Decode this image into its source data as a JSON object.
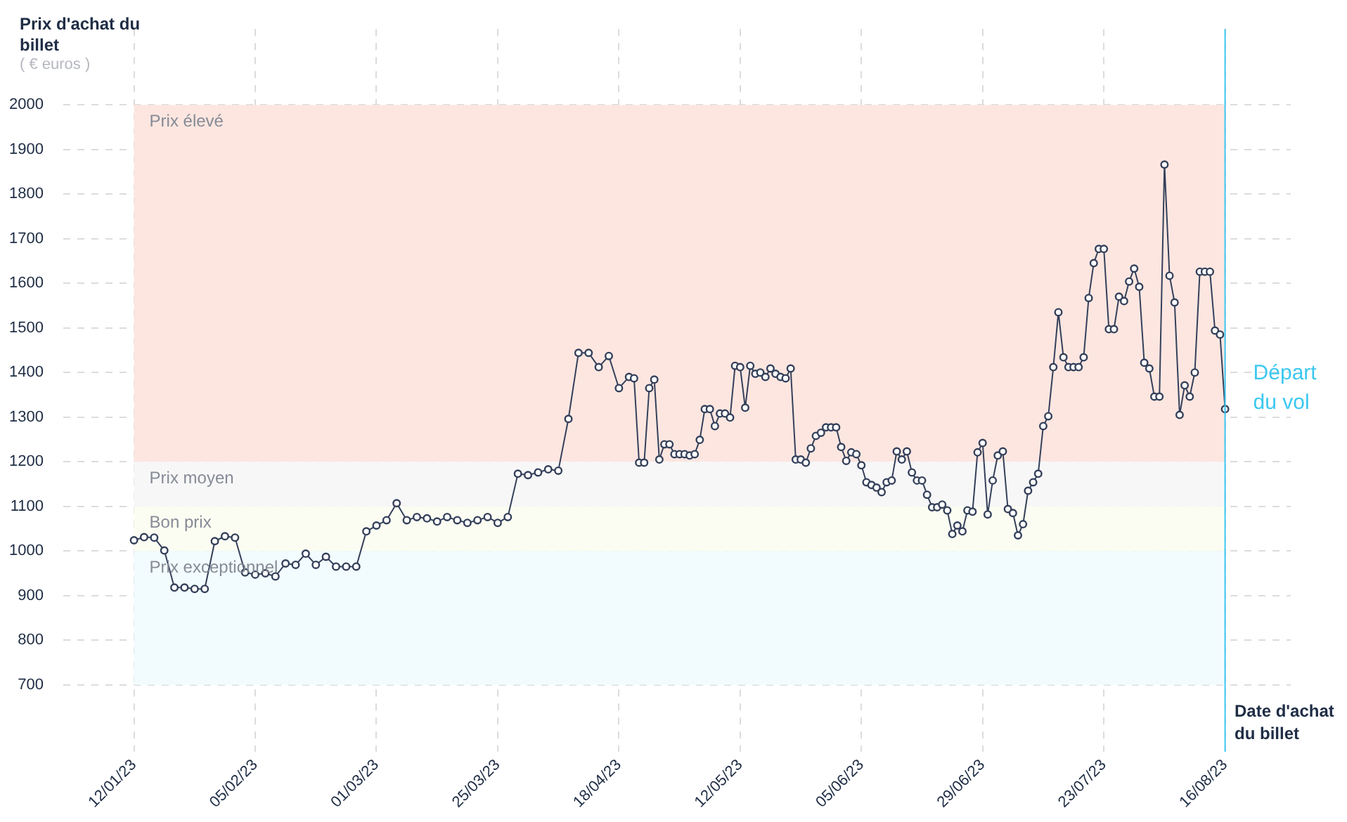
{
  "chart_data": {
    "type": "line",
    "ylabel": "Prix d'achat du billet",
    "xlabel": "Date d'achat du billet",
    "annotations": [
      "( € euros )"
    ],
    "x": [
      "2023-01-12",
      "2023-01-14",
      "2023-01-16",
      "2023-01-18",
      "2023-01-20",
      "2023-01-22",
      "2023-01-24",
      "2023-01-26",
      "2023-01-28",
      "2023-01-30",
      "2023-02-01",
      "2023-02-03",
      "2023-02-05",
      "2023-02-07",
      "2023-02-09",
      "2023-02-11",
      "2023-02-13",
      "2023-02-15",
      "2023-02-17",
      "2023-02-19",
      "2023-02-21",
      "2023-02-23",
      "2023-02-25",
      "2023-02-27",
      "2023-03-01",
      "2023-03-03",
      "2023-03-05",
      "2023-03-07",
      "2023-03-09",
      "2023-03-11",
      "2023-03-13",
      "2023-03-15",
      "2023-03-17",
      "2023-03-19",
      "2023-03-21",
      "2023-03-23",
      "2023-03-25",
      "2023-03-27",
      "2023-03-29",
      "2023-03-31",
      "2023-04-02",
      "2023-04-04",
      "2023-04-06",
      "2023-04-08",
      "2023-04-10",
      "2023-04-12",
      "2023-04-14",
      "2023-04-16",
      "2023-04-18",
      "2023-04-20",
      "2023-04-21",
      "2023-04-22",
      "2023-04-23",
      "2023-04-24",
      "2023-04-25",
      "2023-04-26",
      "2023-04-27",
      "2023-04-28",
      "2023-04-29",
      "2023-04-30",
      "2023-05-01",
      "2023-05-02",
      "2023-05-03",
      "2023-05-04",
      "2023-05-05",
      "2023-05-06",
      "2023-05-07",
      "2023-05-08",
      "2023-05-09",
      "2023-05-10",
      "2023-05-11",
      "2023-05-12",
      "2023-05-13",
      "2023-05-14",
      "2023-05-15",
      "2023-05-16",
      "2023-05-17",
      "2023-05-18",
      "2023-05-19",
      "2023-05-20",
      "2023-05-21",
      "2023-05-22",
      "2023-05-23",
      "2023-05-24",
      "2023-05-25",
      "2023-05-26",
      "2023-05-27",
      "2023-05-28",
      "2023-05-29",
      "2023-05-30",
      "2023-05-31",
      "2023-06-01",
      "2023-06-02",
      "2023-06-03",
      "2023-06-04",
      "2023-06-05",
      "2023-06-06",
      "2023-06-07",
      "2023-06-08",
      "2023-06-09",
      "2023-06-10",
      "2023-06-11",
      "2023-06-12",
      "2023-06-13",
      "2023-06-14",
      "2023-06-15",
      "2023-06-16",
      "2023-06-17",
      "2023-06-18",
      "2023-06-19",
      "2023-06-20",
      "2023-06-21",
      "2023-06-22",
      "2023-06-23",
      "2023-06-24",
      "2023-06-25",
      "2023-06-26",
      "2023-06-27",
      "2023-06-28",
      "2023-06-29",
      "2023-06-30",
      "2023-07-01",
      "2023-07-02",
      "2023-07-03",
      "2023-07-04",
      "2023-07-05",
      "2023-07-06",
      "2023-07-07",
      "2023-07-08",
      "2023-07-09",
      "2023-07-10",
      "2023-07-11",
      "2023-07-12",
      "2023-07-13",
      "2023-07-14",
      "2023-07-15",
      "2023-07-16",
      "2023-07-17",
      "2023-07-18",
      "2023-07-19",
      "2023-07-20",
      "2023-07-21",
      "2023-07-22",
      "2023-07-23",
      "2023-07-24",
      "2023-07-25",
      "2023-07-26",
      "2023-07-27",
      "2023-07-28",
      "2023-07-29",
      "2023-07-30",
      "2023-07-31",
      "2023-08-01",
      "2023-08-02",
      "2023-08-03",
      "2023-08-04",
      "2023-08-05",
      "2023-08-06",
      "2023-08-07",
      "2023-08-08",
      "2023-08-09",
      "2023-08-10",
      "2023-08-11",
      "2023-08-12",
      "2023-08-13",
      "2023-08-14",
      "2023-08-15",
      "2023-08-16"
    ],
    "values": [
      1024,
      1031,
      1030,
      1001,
      918,
      918,
      915,
      915,
      1022,
      1033,
      1030,
      952,
      947,
      950,
      943,
      972,
      969,
      994,
      969,
      987,
      965,
      965,
      965,
      1044,
      1057,
      1069,
      1107,
      1069,
      1076,
      1073,
      1066,
      1076,
      1069,
      1063,
      1069,
      1076,
      1063,
      1076,
      1173,
      1170,
      1176,
      1183,
      1180,
      1296,
      1444,
      1444,
      1412,
      1437,
      1365,
      1390,
      1387,
      1198,
      1198,
      1365,
      1384,
      1205,
      1239,
      1239,
      1217,
      1217,
      1217,
      1214,
      1217,
      1249,
      1318,
      1318,
      1280,
      1308,
      1308,
      1299,
      1415,
      1412,
      1321,
      1415,
      1397,
      1400,
      1390,
      1409,
      1397,
      1390,
      1387,
      1409,
      1205,
      1205,
      1198,
      1230,
      1258,
      1265,
      1277,
      1277,
      1277,
      1233,
      1202,
      1221,
      1217,
      1192,
      1154,
      1148,
      1142,
      1132,
      1154,
      1158,
      1223,
      1205,
      1223,
      1176,
      1158,
      1158,
      1126,
      1098,
      1098,
      1104,
      1091,
      1038,
      1057,
      1044,
      1091,
      1088,
      1221,
      1242,
      1082,
      1158,
      1214,
      1223,
      1094,
      1085,
      1035,
      1060,
      1135,
      1154,
      1173,
      1280,
      1302,
      1412,
      1535,
      1434,
      1412,
      1412,
      1412,
      1434,
      1567,
      1645,
      1677,
      1677,
      1497,
      1497,
      1570,
      1560,
      1604,
      1633,
      1592,
      1422,
      1409,
      1346,
      1346,
      1866,
      1617,
      1557,
      1305,
      1371,
      1346,
      1400,
      1626,
      1626,
      1626,
      1494,
      1485,
      1318
    ],
    "color": "#34405a",
    "marker": "circle",
    "line_style": "solid",
    "grid": true,
    "xlim": [
      "2022-12-29",
      "2023-08-29"
    ],
    "xticks": [
      {
        "value": "2023-01-12",
        "label": "12/01/23"
      },
      {
        "value": "2023-02-05",
        "label": "05/02/23"
      },
      {
        "value": "2023-03-01",
        "label": "01/03/23"
      },
      {
        "value": "2023-03-25",
        "label": "25/03/23"
      },
      {
        "value": "2023-04-18",
        "label": "18/04/23"
      },
      {
        "value": "2023-05-12",
        "label": "12/05/23"
      },
      {
        "value": "2023-06-05",
        "label": "05/06/23"
      },
      {
        "value": "2023-06-29",
        "label": "29/06/23"
      },
      {
        "value": "2023-07-23",
        "label": "23/07/23"
      },
      {
        "value": "2023-08-16",
        "label": "16/08/23"
      }
    ],
    "ylim": [
      550,
      2170
    ],
    "yticks": [
      700,
      800,
      900,
      1000,
      1100,
      1200,
      1300,
      1400,
      1500,
      1600,
      1700,
      1800,
      1900,
      2000
    ],
    "bands": [
      {
        "axis": "y",
        "from": 1200,
        "to": 2000,
        "label": "Prix élevé",
        "color": "#fde6e0"
      },
      {
        "axis": "y",
        "from": 1100,
        "to": 1200,
        "label": "Prix moyen",
        "color": "#f7f7f8"
      },
      {
        "axis": "y",
        "from": 1000,
        "to": 1100,
        "label": "Bon prix",
        "color": "#fcfdf2"
      },
      {
        "axis": "y",
        "from": 700,
        "to": 1000,
        "label": "Prix exceptionnel",
        "color": "#f2fbfd"
      }
    ],
    "ref_lines": [
      {
        "axis": "x",
        "value": "2023-08-16",
        "label": "Départ du vol",
        "color": "#3cc8f0"
      }
    ]
  }
}
